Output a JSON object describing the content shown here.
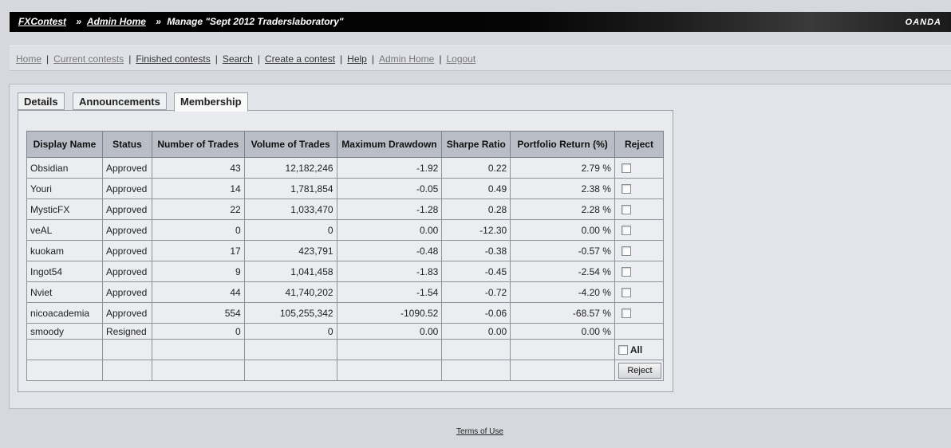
{
  "header": {
    "crumb1": "FXContest",
    "crumb2": "Admin Home",
    "current": "Manage \"Sept 2012 Traderslaboratory\"",
    "sep": "»",
    "brand": "OANDA"
  },
  "nav": {
    "items": [
      {
        "label": "Home",
        "dim": true
      },
      {
        "label": "Current contests",
        "dim": true
      },
      {
        "label": "Finished contests",
        "dim": false
      },
      {
        "label": "Search",
        "dim": false
      },
      {
        "label": "Create a contest",
        "dim": false
      },
      {
        "label": "Help",
        "dim": false
      },
      {
        "label": "Admin Home",
        "dim": true
      },
      {
        "label": "Logout",
        "dim": true
      }
    ],
    "sep": "|"
  },
  "tabs": [
    "Details",
    "Announcements",
    "Membership"
  ],
  "table": {
    "headers": [
      "Display Name",
      "Status",
      "Number of Trades",
      "Volume of Trades",
      "Maximum Drawdown",
      "Sharpe Ratio",
      "Portfolio Return (%)",
      "Reject"
    ],
    "rows": [
      {
        "name": "Obsidian",
        "status": "Approved",
        "trades": "43",
        "volume": "12,182,246",
        "drawdown": "-1.92",
        "sharpe": "0.22",
        "ret": "2.79 %",
        "checkbox": true
      },
      {
        "name": "Youri",
        "status": "Approved",
        "trades": "14",
        "volume": "1,781,854",
        "drawdown": "-0.05",
        "sharpe": "0.49",
        "ret": "2.38 %",
        "checkbox": true
      },
      {
        "name": "MysticFX",
        "status": "Approved",
        "trades": "22",
        "volume": "1,033,470",
        "drawdown": "-1.28",
        "sharpe": "0.28",
        "ret": "2.28 %",
        "checkbox": true
      },
      {
        "name": "veAL",
        "status": "Approved",
        "trades": "0",
        "volume": "0",
        "drawdown": "0.00",
        "sharpe": "-12.30",
        "ret": "0.00 %",
        "checkbox": true
      },
      {
        "name": "kuokam",
        "status": "Approved",
        "trades": "17",
        "volume": "423,791",
        "drawdown": "-0.48",
        "sharpe": "-0.38",
        "ret": "-0.57 %",
        "checkbox": true
      },
      {
        "name": "Ingot54",
        "status": "Approved",
        "trades": "9",
        "volume": "1,041,458",
        "drawdown": "-1.83",
        "sharpe": "-0.45",
        "ret": "-2.54 %",
        "checkbox": true
      },
      {
        "name": "Nviet",
        "status": "Approved",
        "trades": "44",
        "volume": "41,740,202",
        "drawdown": "-1.54",
        "sharpe": "-0.72",
        "ret": "-4.20 %",
        "checkbox": true
      },
      {
        "name": "nicoacademia",
        "status": "Approved",
        "trades": "554",
        "volume": "105,255,342",
        "drawdown": "-1090.52",
        "sharpe": "-0.06",
        "ret": "-68.57 %",
        "checkbox": true
      },
      {
        "name": "smoody",
        "status": "Resigned",
        "trades": "0",
        "volume": "0",
        "drawdown": "0.00",
        "sharpe": "0.00",
        "ret": "0.00 %",
        "checkbox": false
      }
    ],
    "all_label": "All",
    "reject_button": "Reject"
  },
  "footer": {
    "terms": "Terms of Use"
  }
}
